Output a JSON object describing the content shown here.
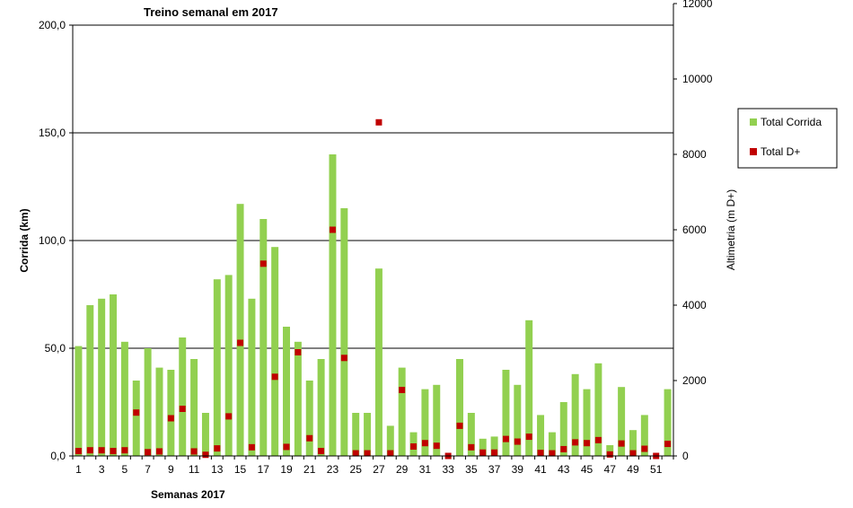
{
  "chart_data": {
    "type": "bar",
    "title": "Treino semanal em 2017",
    "xlabel": "Semanas 2017",
    "ylabel": "Corrida (km)",
    "y2label": "Altimetria (m D+)",
    "ylim": [
      0,
      200
    ],
    "y2lim": [
      0,
      12000
    ],
    "y_ticks": [
      "0,0",
      "50,0",
      "100,0",
      "150,0",
      "200,0"
    ],
    "y2_ticks": [
      "0",
      "2000",
      "4000",
      "6000",
      "8000",
      "10000",
      "12000"
    ],
    "x": [
      1,
      2,
      3,
      4,
      5,
      6,
      7,
      8,
      9,
      10,
      11,
      12,
      13,
      14,
      15,
      16,
      17,
      18,
      19,
      20,
      21,
      22,
      23,
      24,
      25,
      26,
      27,
      28,
      29,
      30,
      31,
      32,
      33,
      34,
      35,
      36,
      37,
      38,
      39,
      40,
      41,
      42,
      43,
      44,
      45,
      46,
      47,
      48,
      49,
      50,
      51,
      52
    ],
    "x_tick_labels": [
      "1",
      "3",
      "5",
      "7",
      "9",
      "11",
      "13",
      "15",
      "17",
      "19",
      "21",
      "23",
      "25",
      "27",
      "29",
      "31",
      "33",
      "35",
      "37",
      "39",
      "41",
      "43",
      "45",
      "47",
      "49",
      "51"
    ],
    "grid": true,
    "legend_position": "right",
    "series": [
      {
        "name": "Total Corrida",
        "type": "bar",
        "axis": "left",
        "color": "#92d050",
        "values": [
          51,
          70,
          73,
          75,
          53,
          35,
          50,
          41,
          40,
          55,
          45,
          20,
          82,
          84,
          117,
          73,
          110,
          97,
          60,
          53,
          35,
          45,
          140,
          115,
          20,
          20,
          87,
          14,
          41,
          11,
          31,
          33,
          0,
          45,
          20,
          8,
          9,
          40,
          33,
          63,
          19,
          11,
          25,
          38,
          31,
          43,
          5,
          32,
          12,
          19,
          0,
          31
        ]
      },
      {
        "name": "Total D+",
        "type": "marker",
        "axis": "right",
        "color": "#c00000",
        "values": [
          130,
          150,
          150,
          130,
          150,
          1150,
          100,
          120,
          1000,
          1250,
          120,
          30,
          200,
          1050,
          3000,
          230,
          5100,
          2100,
          240,
          2750,
          470,
          130,
          6000,
          2600,
          70,
          70,
          8850,
          70,
          1750,
          250,
          340,
          270,
          0,
          800,
          230,
          90,
          90,
          450,
          380,
          510,
          80,
          70,
          180,
          360,
          340,
          420,
          40,
          330,
          70,
          190,
          0,
          320
        ]
      }
    ]
  }
}
